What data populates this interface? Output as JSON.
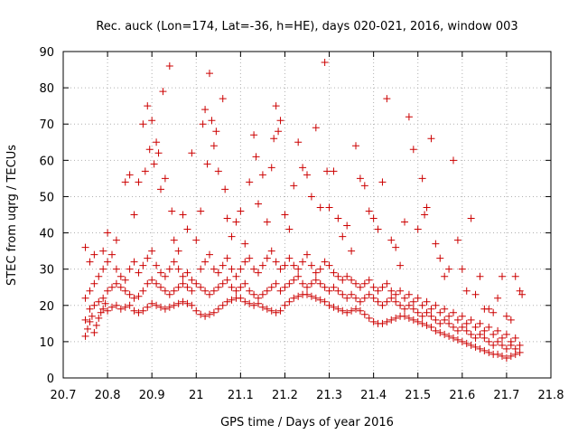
{
  "chart_data": {
    "type": "scatter",
    "title": "Rec. auck (Lon=174, Lat=-36, h=HE), days 020-021, 2016, window 003",
    "xlabel": "GPS time / Days of year 2016",
    "ylabel": "STEC from uqrg / TECUs",
    "xlim": [
      20.7,
      21.8
    ],
    "ylim": [
      0,
      90
    ],
    "xticks": [
      20.7,
      20.8,
      20.9,
      21.0,
      21.1,
      21.2,
      21.3,
      21.4,
      21.5,
      21.6,
      21.7,
      21.8
    ],
    "xtick_labels": [
      "20.7",
      "20.8",
      "20.9",
      "21",
      "21.1",
      "21.2",
      "21.3",
      "21.4",
      "21.5",
      "21.6",
      "21.7",
      "21.8"
    ],
    "yticks": [
      0,
      10,
      20,
      30,
      40,
      50,
      60,
      70,
      80,
      90
    ],
    "ytick_labels": [
      "0",
      "10",
      "20",
      "30",
      "40",
      "50",
      "60",
      "70",
      "80",
      "90"
    ],
    "grid": true,
    "marker": "+",
    "color": "#cc0000",
    "points": [
      [
        20.75,
        11.5
      ],
      [
        20.755,
        13.5
      ],
      [
        20.76,
        15.5
      ],
      [
        20.765,
        17
      ],
      [
        20.77,
        12.5
      ],
      [
        20.775,
        14.5
      ],
      [
        20.78,
        16.5
      ],
      [
        20.785,
        18
      ],
      [
        20.79,
        19
      ],
      [
        20.795,
        20.5
      ],
      [
        20.8,
        18.5
      ],
      [
        20.81,
        19.5
      ],
      [
        20.82,
        20
      ],
      [
        20.83,
        19
      ],
      [
        20.84,
        19.5
      ],
      [
        20.85,
        20
      ],
      [
        20.86,
        18.5
      ],
      [
        20.87,
        18
      ],
      [
        20.88,
        18.5
      ],
      [
        20.89,
        19.5
      ],
      [
        20.9,
        20.5
      ],
      [
        20.91,
        20
      ],
      [
        20.92,
        19.5
      ],
      [
        20.93,
        19
      ],
      [
        20.94,
        19.5
      ],
      [
        20.95,
        20
      ],
      [
        20.96,
        20.5
      ],
      [
        20.97,
        21
      ],
      [
        20.98,
        20.5
      ],
      [
        20.99,
        20
      ],
      [
        21.0,
        18.5
      ],
      [
        21.01,
        17.5
      ],
      [
        21.02,
        17
      ],
      [
        21.03,
        17.5
      ],
      [
        21.04,
        18
      ],
      [
        21.05,
        19
      ],
      [
        21.06,
        20
      ],
      [
        21.07,
        21
      ],
      [
        21.08,
        21.5
      ],
      [
        21.09,
        22
      ],
      [
        21.1,
        22
      ],
      [
        21.11,
        21
      ],
      [
        21.12,
        20.5
      ],
      [
        21.13,
        20
      ],
      [
        21.14,
        20.5
      ],
      [
        21.15,
        19.5
      ],
      [
        21.16,
        19
      ],
      [
        21.17,
        18.5
      ],
      [
        21.18,
        18
      ],
      [
        21.19,
        18.5
      ],
      [
        21.2,
        20
      ],
      [
        21.21,
        21
      ],
      [
        21.22,
        22
      ],
      [
        21.23,
        22.5
      ],
      [
        21.24,
        23
      ],
      [
        21.25,
        23
      ],
      [
        21.26,
        22.5
      ],
      [
        21.27,
        22
      ],
      [
        21.28,
        21.5
      ],
      [
        21.29,
        21
      ],
      [
        21.3,
        20
      ],
      [
        21.31,
        19.5
      ],
      [
        21.32,
        19
      ],
      [
        21.33,
        18.5
      ],
      [
        21.34,
        18
      ],
      [
        21.35,
        18.5
      ],
      [
        21.36,
        19
      ],
      [
        21.37,
        18.5
      ],
      [
        21.38,
        17.5
      ],
      [
        21.39,
        16.5
      ],
      [
        21.4,
        15.5
      ],
      [
        21.41,
        15
      ],
      [
        21.42,
        15
      ],
      [
        21.43,
        15.5
      ],
      [
        21.44,
        16
      ],
      [
        21.45,
        16.5
      ],
      [
        21.46,
        17
      ],
      [
        21.47,
        17
      ],
      [
        21.48,
        16.5
      ],
      [
        21.49,
        16
      ],
      [
        21.5,
        15.5
      ],
      [
        21.51,
        15
      ],
      [
        21.52,
        14.5
      ],
      [
        21.53,
        14
      ],
      [
        21.54,
        13
      ],
      [
        21.55,
        12.5
      ],
      [
        21.56,
        12
      ],
      [
        21.57,
        11.5
      ],
      [
        21.58,
        11
      ],
      [
        21.59,
        10.5
      ],
      [
        21.6,
        10
      ],
      [
        21.61,
        9.5
      ],
      [
        21.62,
        9
      ],
      [
        21.63,
        8.5
      ],
      [
        21.64,
        8
      ],
      [
        21.65,
        7.5
      ],
      [
        21.66,
        7
      ],
      [
        21.67,
        6.5
      ],
      [
        21.68,
        6.5
      ],
      [
        21.69,
        6
      ],
      [
        21.7,
        5.5
      ],
      [
        21.71,
        6
      ],
      [
        21.72,
        6.5
      ],
      [
        21.73,
        7
      ],
      [
        20.75,
        16
      ],
      [
        20.76,
        19
      ],
      [
        20.77,
        20
      ],
      [
        20.78,
        21
      ],
      [
        20.79,
        22
      ],
      [
        20.8,
        24
      ],
      [
        20.81,
        25
      ],
      [
        20.82,
        26
      ],
      [
        20.83,
        25
      ],
      [
        20.84,
        24
      ],
      [
        20.85,
        23
      ],
      [
        20.86,
        22
      ],
      [
        20.87,
        22.5
      ],
      [
        20.88,
        24
      ],
      [
        20.89,
        26
      ],
      [
        20.9,
        27
      ],
      [
        20.91,
        26
      ],
      [
        20.92,
        25
      ],
      [
        20.93,
        24
      ],
      [
        20.94,
        23
      ],
      [
        20.95,
        24
      ],
      [
        20.96,
        25
      ],
      [
        20.97,
        26
      ],
      [
        20.98,
        25
      ],
      [
        20.99,
        24
      ],
      [
        21.0,
        26
      ],
      [
        21.01,
        25
      ],
      [
        21.02,
        24
      ],
      [
        21.03,
        23
      ],
      [
        21.04,
        24
      ],
      [
        21.05,
        25
      ],
      [
        21.06,
        26
      ],
      [
        21.07,
        27
      ],
      [
        21.08,
        25
      ],
      [
        21.09,
        24
      ],
      [
        21.1,
        25
      ],
      [
        21.11,
        26
      ],
      [
        21.12,
        24
      ],
      [
        21.13,
        23
      ],
      [
        21.14,
        22
      ],
      [
        21.15,
        23
      ],
      [
        21.16,
        24
      ],
      [
        21.17,
        25
      ],
      [
        21.18,
        26
      ],
      [
        21.19,
        24
      ],
      [
        21.2,
        25
      ],
      [
        21.21,
        26
      ],
      [
        21.22,
        27
      ],
      [
        21.23,
        28
      ],
      [
        21.24,
        26
      ],
      [
        21.25,
        25
      ],
      [
        21.26,
        26
      ],
      [
        21.27,
        27
      ],
      [
        21.28,
        26
      ],
      [
        21.29,
        25
      ],
      [
        21.3,
        24
      ],
      [
        21.31,
        25
      ],
      [
        21.32,
        24
      ],
      [
        21.33,
        23
      ],
      [
        21.34,
        22
      ],
      [
        21.35,
        23
      ],
      [
        21.36,
        22
      ],
      [
        21.37,
        21
      ],
      [
        21.38,
        22
      ],
      [
        21.39,
        23
      ],
      [
        21.4,
        22
      ],
      [
        21.41,
        21
      ],
      [
        21.42,
        20
      ],
      [
        21.43,
        21
      ],
      [
        21.44,
        22
      ],
      [
        21.45,
        21
      ],
      [
        21.46,
        20
      ],
      [
        21.47,
        19
      ],
      [
        21.48,
        20
      ],
      [
        21.49,
        19
      ],
      [
        21.5,
        18
      ],
      [
        21.51,
        17
      ],
      [
        21.52,
        18
      ],
      [
        21.53,
        17
      ],
      [
        21.54,
        16
      ],
      [
        21.55,
        15
      ],
      [
        21.56,
        16
      ],
      [
        21.57,
        15
      ],
      [
        21.58,
        14
      ],
      [
        21.59,
        13
      ],
      [
        21.6,
        14
      ],
      [
        21.61,
        13
      ],
      [
        21.62,
        12
      ],
      [
        21.63,
        11
      ],
      [
        21.64,
        12
      ],
      [
        21.65,
        11
      ],
      [
        21.66,
        10
      ],
      [
        21.67,
        9
      ],
      [
        21.68,
        10
      ],
      [
        21.69,
        9
      ],
      [
        21.7,
        8
      ],
      [
        21.71,
        9
      ],
      [
        21.72,
        8
      ],
      [
        21.73,
        9
      ],
      [
        20.75,
        22
      ],
      [
        20.76,
        24
      ],
      [
        20.77,
        26
      ],
      [
        20.78,
        28
      ],
      [
        20.79,
        30
      ],
      [
        20.8,
        32
      ],
      [
        20.81,
        34
      ],
      [
        20.82,
        30
      ],
      [
        20.83,
        28
      ],
      [
        20.84,
        27
      ],
      [
        20.85,
        30
      ],
      [
        20.86,
        32
      ],
      [
        20.87,
        29
      ],
      [
        20.88,
        31
      ],
      [
        20.89,
        33
      ],
      [
        20.9,
        35
      ],
      [
        20.91,
        31
      ],
      [
        20.92,
        29
      ],
      [
        20.93,
        28
      ],
      [
        20.94,
        30
      ],
      [
        20.95,
        32
      ],
      [
        20.96,
        30
      ],
      [
        20.97,
        28
      ],
      [
        20.98,
        29
      ],
      [
        20.99,
        27
      ],
      [
        21.01,
        30
      ],
      [
        21.02,
        32
      ],
      [
        21.03,
        34
      ],
      [
        21.04,
        30
      ],
      [
        21.05,
        29
      ],
      [
        21.06,
        31
      ],
      [
        21.07,
        33
      ],
      [
        21.08,
        30
      ],
      [
        21.09,
        28
      ],
      [
        21.1,
        30
      ],
      [
        21.11,
        32
      ],
      [
        21.12,
        33
      ],
      [
        21.13,
        30
      ],
      [
        21.14,
        29
      ],
      [
        21.15,
        31
      ],
      [
        21.16,
        33
      ],
      [
        21.17,
        35
      ],
      [
        21.18,
        32
      ],
      [
        21.19,
        30
      ],
      [
        21.2,
        31
      ],
      [
        21.21,
        33
      ],
      [
        21.22,
        31
      ],
      [
        21.23,
        30
      ],
      [
        21.24,
        32
      ],
      [
        21.25,
        34
      ],
      [
        21.26,
        31
      ],
      [
        21.27,
        29
      ],
      [
        21.28,
        30
      ],
      [
        21.29,
        32
      ],
      [
        21.3,
        31
      ],
      [
        21.31,
        29
      ],
      [
        21.32,
        28
      ],
      [
        21.33,
        27
      ],
      [
        21.34,
        28
      ],
      [
        21.35,
        27
      ],
      [
        21.36,
        26
      ],
      [
        21.37,
        25
      ],
      [
        21.38,
        26
      ],
      [
        21.39,
        27
      ],
      [
        21.4,
        25
      ],
      [
        21.41,
        24
      ],
      [
        21.42,
        25
      ],
      [
        21.43,
        26
      ],
      [
        21.44,
        24
      ],
      [
        21.45,
        23
      ],
      [
        21.46,
        24
      ],
      [
        21.47,
        22
      ],
      [
        21.48,
        23
      ],
      [
        21.49,
        21
      ],
      [
        21.5,
        22
      ],
      [
        21.51,
        20
      ],
      [
        21.52,
        21
      ],
      [
        21.53,
        19
      ],
      [
        21.54,
        20
      ],
      [
        21.55,
        18
      ],
      [
        21.56,
        19
      ],
      [
        21.57,
        17
      ],
      [
        21.58,
        18
      ],
      [
        21.59,
        16
      ],
      [
        21.6,
        17
      ],
      [
        21.61,
        15
      ],
      [
        21.62,
        16
      ],
      [
        21.63,
        14
      ],
      [
        21.64,
        15
      ],
      [
        21.65,
        13
      ],
      [
        21.66,
        14
      ],
      [
        21.67,
        12
      ],
      [
        21.68,
        13
      ],
      [
        21.69,
        11
      ],
      [
        21.7,
        12
      ],
      [
        21.71,
        10
      ],
      [
        21.72,
        11
      ],
      [
        20.75,
        36
      ],
      [
        20.76,
        32
      ],
      [
        20.77,
        34
      ],
      [
        20.79,
        35
      ],
      [
        20.8,
        40
      ],
      [
        20.82,
        38
      ],
      [
        20.84,
        54
      ],
      [
        20.85,
        56
      ],
      [
        20.86,
        45
      ],
      [
        20.87,
        54
      ],
      [
        20.88,
        70
      ],
      [
        20.885,
        57
      ],
      [
        20.89,
        75
      ],
      [
        20.895,
        63
      ],
      [
        20.9,
        71
      ],
      [
        20.905,
        59
      ],
      [
        20.91,
        65
      ],
      [
        20.915,
        62
      ],
      [
        20.92,
        52
      ],
      [
        20.925,
        79
      ],
      [
        20.93,
        55
      ],
      [
        20.94,
        86
      ],
      [
        20.945,
        46
      ],
      [
        20.95,
        38
      ],
      [
        20.96,
        35
      ],
      [
        20.97,
        45
      ],
      [
        20.98,
        41
      ],
      [
        20.99,
        62
      ],
      [
        21.0,
        38
      ],
      [
        21.01,
        46
      ],
      [
        21.015,
        70
      ],
      [
        21.02,
        74
      ],
      [
        21.025,
        59
      ],
      [
        21.03,
        84
      ],
      [
        21.035,
        71
      ],
      [
        21.04,
        64
      ],
      [
        21.045,
        68
      ],
      [
        21.05,
        57
      ],
      [
        21.06,
        77
      ],
      [
        21.065,
        52
      ],
      [
        21.07,
        44
      ],
      [
        21.08,
        39
      ],
      [
        21.09,
        43
      ],
      [
        21.1,
        46
      ],
      [
        21.11,
        37
      ],
      [
        21.12,
        54
      ],
      [
        21.13,
        67
      ],
      [
        21.135,
        61
      ],
      [
        21.14,
        48
      ],
      [
        21.15,
        56
      ],
      [
        21.16,
        43
      ],
      [
        21.17,
        58
      ],
      [
        21.175,
        66
      ],
      [
        21.18,
        75
      ],
      [
        21.185,
        68
      ],
      [
        21.19,
        71
      ],
      [
        21.2,
        45
      ],
      [
        21.21,
        41
      ],
      [
        21.22,
        53
      ],
      [
        21.23,
        65
      ],
      [
        21.24,
        58
      ],
      [
        21.25,
        56
      ],
      [
        21.26,
        50
      ],
      [
        21.27,
        69
      ],
      [
        21.28,
        47
      ],
      [
        21.29,
        87
      ],
      [
        21.295,
        57
      ],
      [
        21.3,
        47
      ],
      [
        21.31,
        57
      ],
      [
        21.32,
        44
      ],
      [
        21.33,
        39
      ],
      [
        21.34,
        42
      ],
      [
        21.35,
        35
      ],
      [
        21.36,
        64
      ],
      [
        21.37,
        55
      ],
      [
        21.38,
        53
      ],
      [
        21.39,
        46
      ],
      [
        21.4,
        44
      ],
      [
        21.41,
        41
      ],
      [
        21.42,
        54
      ],
      [
        21.43,
        77
      ],
      [
        21.44,
        38
      ],
      [
        21.45,
        36
      ],
      [
        21.46,
        31
      ],
      [
        21.47,
        43
      ],
      [
        21.48,
        72
      ],
      [
        21.49,
        63
      ],
      [
        21.5,
        41
      ],
      [
        21.51,
        55
      ],
      [
        21.515,
        45
      ],
      [
        21.52,
        47
      ],
      [
        21.53,
        66
      ],
      [
        21.54,
        37
      ],
      [
        21.55,
        33
      ],
      [
        21.56,
        28
      ],
      [
        21.57,
        30
      ],
      [
        21.58,
        60
      ],
      [
        21.59,
        38
      ],
      [
        21.6,
        30
      ],
      [
        21.61,
        24
      ],
      [
        21.62,
        44
      ],
      [
        21.63,
        23
      ],
      [
        21.64,
        28
      ],
      [
        21.65,
        19
      ],
      [
        21.66,
        19
      ],
      [
        21.67,
        18
      ],
      [
        21.68,
        22
      ],
      [
        21.69,
        28
      ],
      [
        21.7,
        17
      ],
      [
        21.71,
        16
      ],
      [
        21.72,
        28
      ],
      [
        21.73,
        24
      ],
      [
        21.735,
        23
      ]
    ]
  }
}
